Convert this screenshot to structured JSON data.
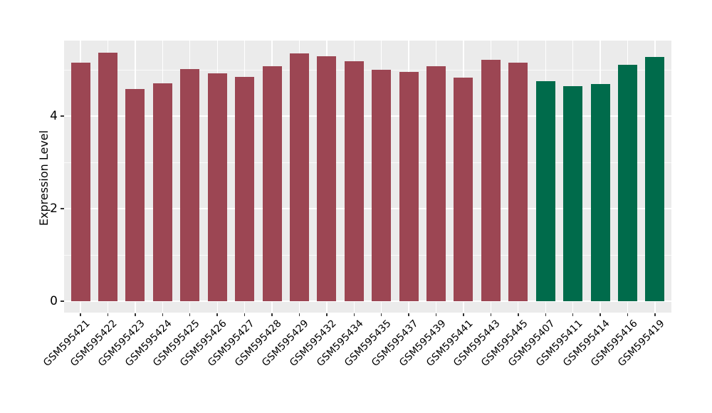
{
  "chart_data": {
    "type": "bar",
    "title": "",
    "xlabel": "",
    "ylabel": "Expression Level",
    "categories": [
      "GSM595421",
      "GSM595422",
      "GSM595423",
      "GSM595424",
      "GSM595425",
      "GSM595426",
      "GSM595427",
      "GSM595428",
      "GSM595429",
      "GSM595432",
      "GSM595434",
      "GSM595435",
      "GSM595437",
      "GSM595439",
      "GSM595441",
      "GSM595443",
      "GSM595445",
      "GSM595407",
      "GSM595411",
      "GSM595414",
      "GSM595416",
      "GSM595419"
    ],
    "values": [
      5.16,
      5.37,
      4.58,
      4.71,
      5.01,
      4.93,
      4.84,
      5.08,
      5.35,
      5.29,
      5.18,
      5.0,
      4.95,
      5.07,
      4.83,
      5.21,
      5.15,
      4.76,
      4.65,
      4.7,
      5.11,
      5.28
    ],
    "groups": [
      {
        "name": "group-1-red",
        "color": "#9C4653",
        "start_index": 0,
        "end_index": 16
      },
      {
        "name": "group-2-green",
        "color": "#006B4B",
        "start_index": 17,
        "end_index": 21
      }
    ],
    "yticks": [
      0,
      2,
      4
    ],
    "ytick_labels": [
      "0",
      "2",
      "4"
    ],
    "yminor_ticks": [
      1,
      3,
      5
    ],
    "ylim": [
      -0.25,
      5.63
    ],
    "grid": true,
    "legend_position": "none",
    "panel_bg": "#EBEBEB",
    "grid_color": "#FFFFFF",
    "text_color": "#000000"
  }
}
